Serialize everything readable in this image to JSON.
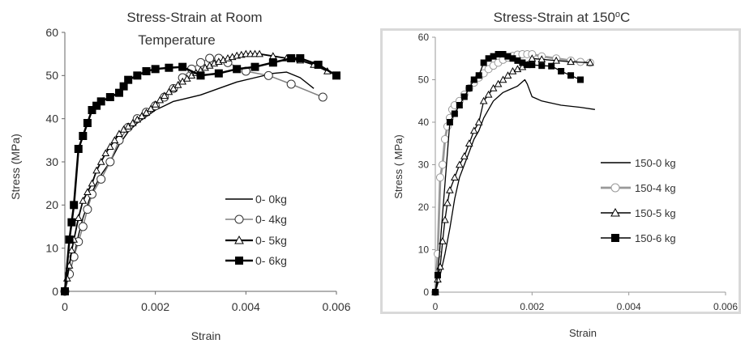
{
  "chart_data": [
    {
      "type": "line",
      "title": "Stress-Strain at Room Temperature",
      "title_lines": [
        "Stress-Strain at Room",
        "Temperature"
      ],
      "xlabel": "Strain",
      "ylabel": "Stress (MPa)",
      "xlim": [
        0,
        0.006
      ],
      "ylim": [
        0,
        60
      ],
      "xticks": [
        0,
        0.002,
        0.004,
        0.006
      ],
      "xtick_labels": [
        "0",
        "0.002",
        "0.004",
        "0.006"
      ],
      "yticks": [
        0,
        10,
        20,
        30,
        40,
        50,
        60
      ],
      "ytick_labels": [
        "0",
        "10",
        "20",
        "30",
        "40",
        "50",
        "60"
      ],
      "grid": false,
      "legend_position": "right",
      "series": [
        {
          "name": "0- 0kg",
          "color": "#000000",
          "marker": "none",
          "x": [
            0,
            0.0001,
            0.0002,
            0.0003,
            0.0004,
            0.0005,
            0.0006,
            0.0007,
            0.0008,
            0.001,
            0.0012,
            0.0014,
            0.0016,
            0.0018,
            0.002,
            0.0022,
            0.0024,
            0.0026,
            0.003,
            0.0034,
            0.0038,
            0.0042,
            0.0046,
            0.0049,
            0.0052,
            0.0055
          ],
          "values": [
            0,
            4,
            8,
            13,
            17,
            20,
            23,
            25,
            27,
            30,
            34,
            37,
            39,
            40.5,
            42,
            43,
            44,
            44.5,
            45.5,
            47,
            48.5,
            49.5,
            50.5,
            50.8,
            49.5,
            47
          ]
        },
        {
          "name": "0- 4kg",
          "color": "#808080",
          "marker": "circle",
          "x": [
            0,
            0.0001,
            0.0002,
            0.0003,
            0.0004,
            0.0005,
            0.0006,
            0.0008,
            0.001,
            0.0012,
            0.0014,
            0.0016,
            0.0018,
            0.002,
            0.0022,
            0.0024,
            0.0026,
            0.0028,
            0.003,
            0.0032,
            0.0034,
            0.0036,
            0.004,
            0.0045,
            0.005,
            0.0057
          ],
          "values": [
            0,
            4,
            8,
            11.5,
            15,
            19,
            22.5,
            26,
            30,
            35,
            38,
            40,
            41.5,
            43,
            45,
            47,
            49.5,
            51.5,
            53,
            54,
            54,
            53,
            51,
            50,
            48,
            45
          ]
        },
        {
          "name": "0- 5kg",
          "color": "#000000",
          "marker": "triangle",
          "x": [
            0,
            5e-05,
            0.0001,
            0.00015,
            0.0002,
            0.0003,
            0.0004,
            0.0005,
            0.0006,
            0.0007,
            0.0008,
            0.0009,
            0.001,
            0.0011,
            0.0012,
            0.0013,
            0.0014,
            0.0015,
            0.0016,
            0.0017,
            0.0018,
            0.0019,
            0.002,
            0.0021,
            0.0022,
            0.0023,
            0.0024,
            0.0025,
            0.0026,
            0.0027,
            0.0028,
            0.0029,
            0.003,
            0.0031,
            0.0032,
            0.0033,
            0.0034,
            0.0035,
            0.0036,
            0.0037,
            0.0038,
            0.0039,
            0.004,
            0.0041,
            0.0042,
            0.0043,
            0.0046,
            0.0049,
            0.0052,
            0.0055,
            0.0058
          ],
          "values": [
            0,
            3,
            6,
            9.5,
            12,
            17,
            21,
            23,
            25,
            28,
            30,
            32,
            33.5,
            35,
            36.5,
            37.5,
            38.2,
            39,
            39.8,
            40.6,
            41.4,
            42.3,
            43.3,
            44.3,
            45.3,
            46.2,
            47,
            47.8,
            48.6,
            49.3,
            50,
            50.6,
            51.2,
            51.8,
            52.3,
            52.8,
            53.2,
            53.6,
            54,
            54.3,
            54.6,
            54.8,
            55,
            55,
            55,
            55,
            54.5,
            54,
            53.5,
            52.5,
            51
          ]
        },
        {
          "name": "0- 6kg",
          "color": "#000000",
          "marker": "square",
          "x": [
            0,
            0.0001,
            0.00015,
            0.0002,
            0.0003,
            0.0004,
            0.0005,
            0.0006,
            0.0007,
            0.0008,
            0.001,
            0.0012,
            0.0013,
            0.0014,
            0.0016,
            0.0018,
            0.002,
            0.0023,
            0.0026,
            0.003,
            0.0034,
            0.0038,
            0.0042,
            0.0046,
            0.005,
            0.0052,
            0.0056,
            0.006
          ],
          "values": [
            0,
            12,
            16,
            20,
            33,
            36,
            39,
            42,
            43,
            44,
            45,
            46,
            47.5,
            49,
            50,
            51,
            51.5,
            51.8,
            52,
            50,
            50.5,
            51.5,
            52,
            53,
            54,
            54,
            52.5,
            50
          ]
        }
      ]
    },
    {
      "type": "line",
      "title": "Stress-Strain at 150oC",
      "title_text": "Stress-Strain at 150",
      "title_sup": "o",
      "title_suffix": "C",
      "xlabel": "Strain",
      "ylabel": "Stress ( MPa)",
      "xlim": [
        0,
        0.006
      ],
      "ylim": [
        0,
        60
      ],
      "xticks": [
        0,
        0.002,
        0.004,
        0.006
      ],
      "xtick_labels": [
        "0",
        "0.002",
        "0.004",
        "0.006"
      ],
      "yticks": [
        0,
        10,
        20,
        30,
        40,
        50,
        60
      ],
      "ytick_labels": [
        "0",
        "10",
        "20",
        "30",
        "40",
        "50",
        "60"
      ],
      "grid": false,
      "legend_position": "right",
      "series": [
        {
          "name": "150-0 kg",
          "color": "#000000",
          "marker": "none",
          "x": [
            0,
            0.0001,
            0.0002,
            0.0003,
            0.0004,
            0.0005,
            0.0006,
            0.0007,
            0.0008,
            0.0009,
            0.001,
            0.0011,
            0.0012,
            0.0013,
            0.0014,
            0.0015,
            0.0016,
            0.0017,
            0.0018,
            0.00185,
            0.0019,
            0.002,
            0.0021,
            0.0022,
            0.0024,
            0.0026,
            0.003,
            0.0033
          ],
          "values": [
            0,
            4,
            9,
            15,
            22,
            27,
            30,
            33,
            36,
            38,
            41,
            43,
            45,
            46,
            47,
            47.5,
            48,
            48.5,
            49.5,
            50,
            49,
            46,
            45.5,
            45,
            44.5,
            44,
            43.5,
            43
          ]
        },
        {
          "name": "150-4 kg",
          "color": "#999999",
          "marker": "circle",
          "x": [
            0,
            5e-05,
            0.0001,
            0.00015,
            0.0002,
            0.00025,
            0.0003,
            0.00035,
            0.0004,
            0.0005,
            0.0006,
            0.0007,
            0.0008,
            0.0009,
            0.001,
            0.0011,
            0.0012,
            0.0013,
            0.0014,
            0.0015,
            0.0016,
            0.0017,
            0.0018,
            0.0019,
            0.002,
            0.0022,
            0.0025,
            0.0028,
            0.003,
            0.0032
          ],
          "values": [
            0,
            9,
            27,
            30,
            36,
            39,
            41,
            43,
            44,
            45,
            46.5,
            48,
            49.3,
            50.5,
            51.5,
            52.5,
            53.3,
            54,
            54.7,
            55.2,
            55.6,
            55.9,
            56,
            56,
            56,
            55.5,
            55,
            54.5,
            54.2,
            54
          ]
        },
        {
          "name": "150-5 kg",
          "color": "#000000",
          "marker": "triangle",
          "x": [
            0,
            5e-05,
            0.0001,
            0.00015,
            0.0002,
            0.00025,
            0.0003,
            0.0004,
            0.0005,
            0.0006,
            0.0007,
            0.0008,
            0.0009,
            0.001,
            0.0011,
            0.0012,
            0.0013,
            0.0014,
            0.0015,
            0.0016,
            0.0017,
            0.0018,
            0.0019,
            0.002,
            0.0022,
            0.0025,
            0.0028,
            0.0032
          ],
          "values": [
            0,
            3,
            6,
            12,
            17,
            21,
            24,
            27,
            30,
            32,
            35,
            38,
            40,
            45,
            46.5,
            48,
            49,
            50,
            51,
            52,
            52.5,
            53,
            53.5,
            55,
            54.8,
            54.5,
            54.2,
            54
          ]
        },
        {
          "name": "150-6 kg",
          "color": "#000000",
          "marker": "square",
          "x": [
            0,
            5e-05,
            0.0003,
            0.0004,
            0.0005,
            0.0006,
            0.0007,
            0.0008,
            0.0009,
            0.001,
            0.0011,
            0.0012,
            0.0013,
            0.0014,
            0.0015,
            0.0016,
            0.0017,
            0.0018,
            0.0019,
            0.002,
            0.0022,
            0.0024,
            0.0026,
            0.0028,
            0.003
          ],
          "values": [
            0,
            4,
            40,
            42,
            44,
            46,
            48,
            50,
            51,
            54,
            55,
            55.5,
            56,
            56,
            55.5,
            55,
            54.5,
            54,
            53.5,
            53.5,
            53.3,
            53.2,
            52,
            51,
            50
          ]
        }
      ]
    }
  ]
}
